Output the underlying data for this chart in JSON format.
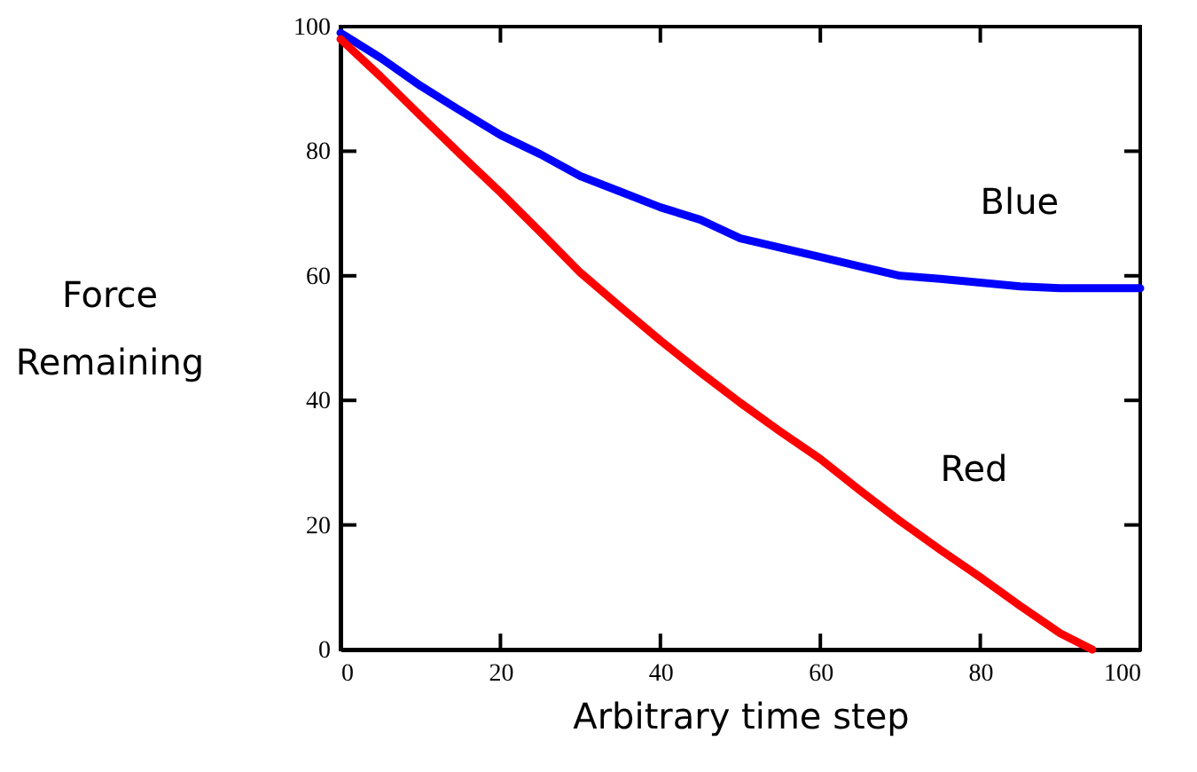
{
  "chart_data": {
    "type": "line",
    "xlabel": "Arbitrary time step",
    "ylabel": "Force Remaining",
    "xlim": [
      0,
      100
    ],
    "ylim": [
      0,
      100
    ],
    "xticks": [
      0,
      20,
      40,
      60,
      80,
      100
    ],
    "yticks": [
      0,
      20,
      40,
      60,
      80,
      100
    ],
    "grid": false,
    "legend": false,
    "marker": "none",
    "line_style": "solid",
    "series": [
      {
        "name": "Blue",
        "color": "#0000ff",
        "x": [
          0,
          5,
          10,
          15,
          20,
          25,
          30,
          35,
          40,
          45,
          50,
          55,
          60,
          65,
          70,
          75,
          80,
          85,
          90,
          95,
          100
        ],
        "values": [
          99,
          95,
          90.5,
          86.5,
          82.6,
          79.5,
          76,
          73.5,
          71,
          69,
          66,
          64.5,
          63,
          61.5,
          60,
          59.5,
          58.9,
          58.3,
          58,
          58,
          58
        ]
      },
      {
        "name": "Red",
        "color": "#ff0000",
        "x": [
          0,
          5,
          10,
          15,
          20,
          25,
          30,
          35,
          40,
          45,
          50,
          55,
          60,
          65,
          70,
          75,
          80,
          85,
          90,
          94
        ],
        "values": [
          98,
          92,
          85.7,
          79.5,
          73.4,
          67,
          60.5,
          55,
          49.6,
          44.5,
          39.6,
          35,
          30.6,
          25.5,
          20.6,
          16,
          11.6,
          7,
          2.6,
          0
        ]
      }
    ]
  }
}
